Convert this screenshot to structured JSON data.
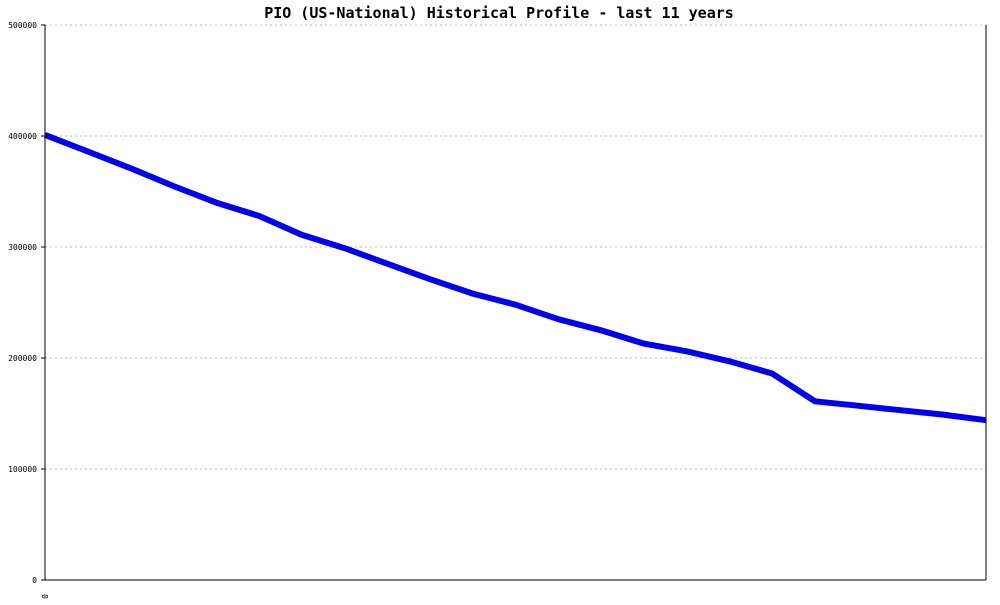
{
  "chart_data": {
    "type": "line",
    "title": "PIO (US-National) Historical Profile - last 11 years",
    "xlabel": "",
    "ylabel": "",
    "ylim": [
      0,
      500000
    ],
    "yticks": [
      "0",
      "100000",
      "200000",
      "300000",
      "400000",
      "500000"
    ],
    "xticks": [
      "0"
    ],
    "grid": true,
    "legend": "none",
    "colors": {
      "line": "#0000ee",
      "grid": "#bbbbbb",
      "axis": "#000000"
    },
    "series": [
      {
        "values": [
          401000,
          386000,
          371000,
          355000,
          340000,
          328000,
          311000,
          299000,
          285000,
          271000,
          258000,
          248000,
          235000,
          225000,
          213000,
          206000,
          197000,
          186000,
          161000,
          157000,
          153000,
          149000,
          144000
        ]
      }
    ]
  }
}
